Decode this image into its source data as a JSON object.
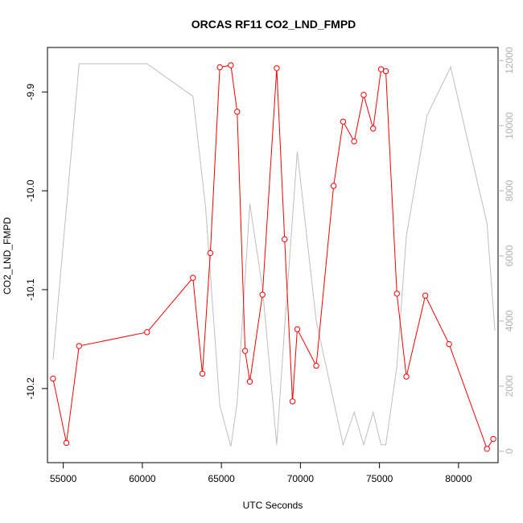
{
  "chart_data": {
    "type": "line",
    "title": "ORCAS RF11 CO2_LND_FMPD",
    "xlabel": "UTC Seconds",
    "ylabel": "CO2_LND_FMPD",
    "xlim": [
      54000,
      82500
    ],
    "ylim": [
      -10.275,
      -9.855
    ],
    "y2lim": [
      -350,
      12400
    ],
    "x_ticks": [
      55000,
      60000,
      65000,
      70000,
      75000,
      80000
    ],
    "y_ticks": [
      -10.2,
      -10.1,
      -10.0,
      -9.9
    ],
    "y2_ticks": [
      0,
      2000,
      4000,
      6000,
      8000,
      10000,
      12000
    ],
    "grid": false,
    "legend": "none",
    "colors": {
      "primary": "#ff0000",
      "secondary": "#bebebe"
    },
    "series": [
      {
        "axis": "left",
        "style": "line+markers",
        "color": "#ff0000",
        "points": [
          [
            54350,
            -10.19
          ],
          [
            55200,
            -10.255
          ],
          [
            56000,
            -10.157
          ],
          [
            60300,
            -10.143
          ],
          [
            63200,
            -10.088
          ],
          [
            63800,
            -10.185
          ],
          [
            64300,
            -10.063
          ],
          [
            64900,
            -9.875
          ],
          [
            65600,
            -9.873
          ],
          [
            66000,
            -9.92
          ],
          [
            66500,
            -10.162
          ],
          [
            66800,
            -10.193
          ],
          [
            67600,
            -10.105
          ],
          [
            68500,
            -9.876
          ],
          [
            69000,
            -10.049
          ],
          [
            69500,
            -10.213
          ],
          [
            69800,
            -10.14
          ],
          [
            71000,
            -10.177
          ],
          [
            72100,
            -9.995
          ],
          [
            72700,
            -9.93
          ],
          [
            73400,
            -9.95
          ],
          [
            74000,
            -9.903
          ],
          [
            74600,
            -9.937
          ],
          [
            75100,
            -9.877
          ],
          [
            75400,
            -9.879
          ],
          [
            76100,
            -10.104
          ],
          [
            76700,
            -10.188
          ],
          [
            77900,
            -10.106
          ],
          [
            79400,
            -10.155
          ],
          [
            81800,
            -10.261
          ],
          [
            82200,
            -10.251
          ]
        ]
      },
      {
        "axis": "right",
        "style": "line",
        "color": "#bebebe",
        "points": [
          [
            54350,
            2800
          ],
          [
            56000,
            11900
          ],
          [
            60300,
            11900
          ],
          [
            63200,
            10900
          ],
          [
            64000,
            7500
          ],
          [
            64900,
            1400
          ],
          [
            65600,
            150
          ],
          [
            66000,
            1500
          ],
          [
            66800,
            7600
          ],
          [
            67600,
            5000
          ],
          [
            68500,
            200
          ],
          [
            69000,
            3800
          ],
          [
            69800,
            9200
          ],
          [
            71000,
            4000
          ],
          [
            72700,
            200
          ],
          [
            73400,
            1200
          ],
          [
            74000,
            200
          ],
          [
            74600,
            1200
          ],
          [
            75100,
            200
          ],
          [
            75400,
            200
          ],
          [
            76100,
            2600
          ],
          [
            76700,
            6600
          ],
          [
            78000,
            10300
          ],
          [
            79500,
            11800
          ],
          [
            81800,
            7000
          ],
          [
            82300,
            3700
          ]
        ]
      }
    ]
  }
}
